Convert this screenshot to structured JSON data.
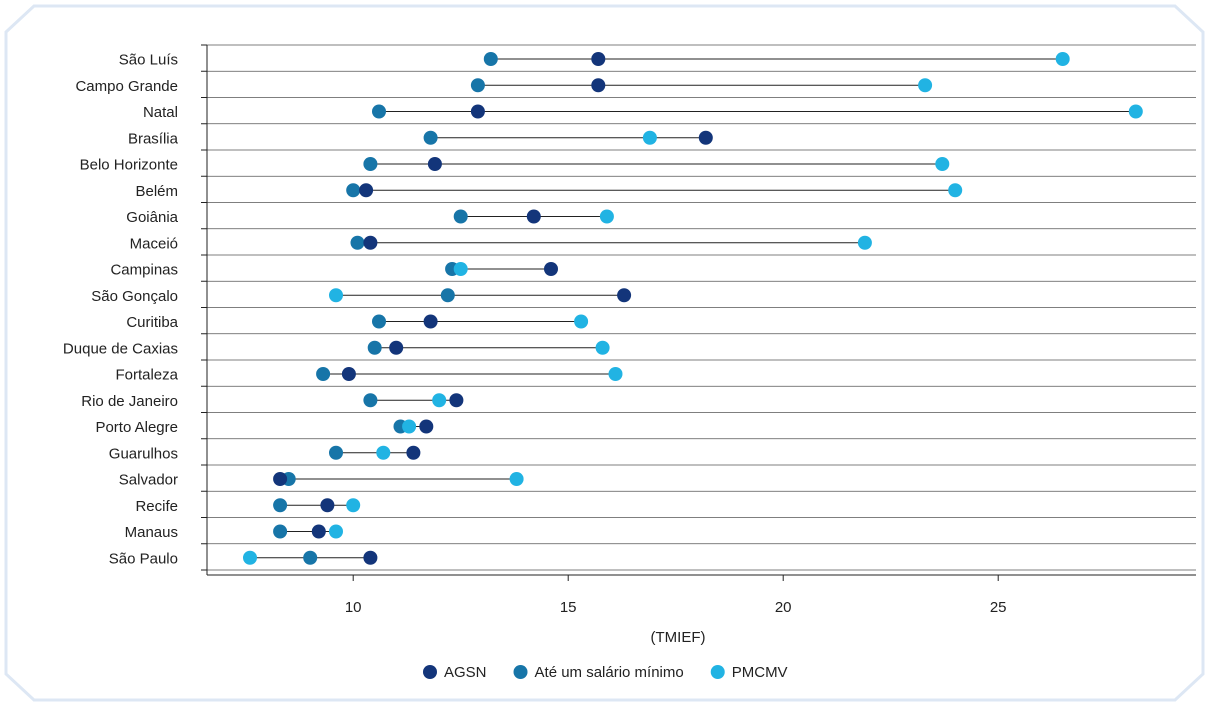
{
  "colors": {
    "frame": "#dde7f4",
    "axis": "#222222",
    "gridline": "#555555",
    "range_line": "#222222"
  },
  "chart_data": {
    "type": "scatter",
    "subtype": "dumbbell",
    "xlabel": "(TMIEF)",
    "xlim": [
      6.6,
      29.6
    ],
    "xticks": [
      10,
      15,
      20,
      25
    ],
    "legend_position": "bottom",
    "categories": [
      "São Luís",
      "Campo Grande",
      "Natal",
      "Brasília",
      "Belo Horizonte",
      "Belém",
      "Goiânia",
      "Maceió",
      "Campinas",
      "São Gonçalo",
      "Curitiba",
      "Duque de Caxias",
      "Fortaleza",
      "Rio de Janeiro",
      "Porto Alegre",
      "Guarulhos",
      "Salvador",
      "Recife",
      "Manaus",
      "São Paulo"
    ],
    "series": [
      {
        "name": "AGSN",
        "color": "#13357a",
        "values": [
          15.7,
          15.7,
          12.9,
          18.2,
          11.9,
          10.3,
          14.2,
          10.4,
          14.6,
          16.3,
          11.8,
          11.0,
          9.9,
          12.4,
          11.7,
          11.4,
          8.3,
          9.4,
          9.2,
          10.4
        ]
      },
      {
        "name": "Até um salário mínimo",
        "color": "#1775a8",
        "values": [
          13.2,
          12.9,
          10.6,
          11.8,
          10.4,
          10.0,
          12.5,
          10.1,
          12.3,
          12.2,
          10.6,
          10.5,
          9.3,
          10.4,
          11.1,
          9.6,
          8.5,
          8.3,
          8.3,
          9.0
        ]
      },
      {
        "name": "PMCMV",
        "color": "#21b3e3",
        "values": [
          26.5,
          23.3,
          28.2,
          16.9,
          23.7,
          24.0,
          15.9,
          21.9,
          12.5,
          9.6,
          15.3,
          15.8,
          16.1,
          12.0,
          11.3,
          10.7,
          13.8,
          10.0,
          9.6,
          7.6
        ]
      }
    ]
  }
}
